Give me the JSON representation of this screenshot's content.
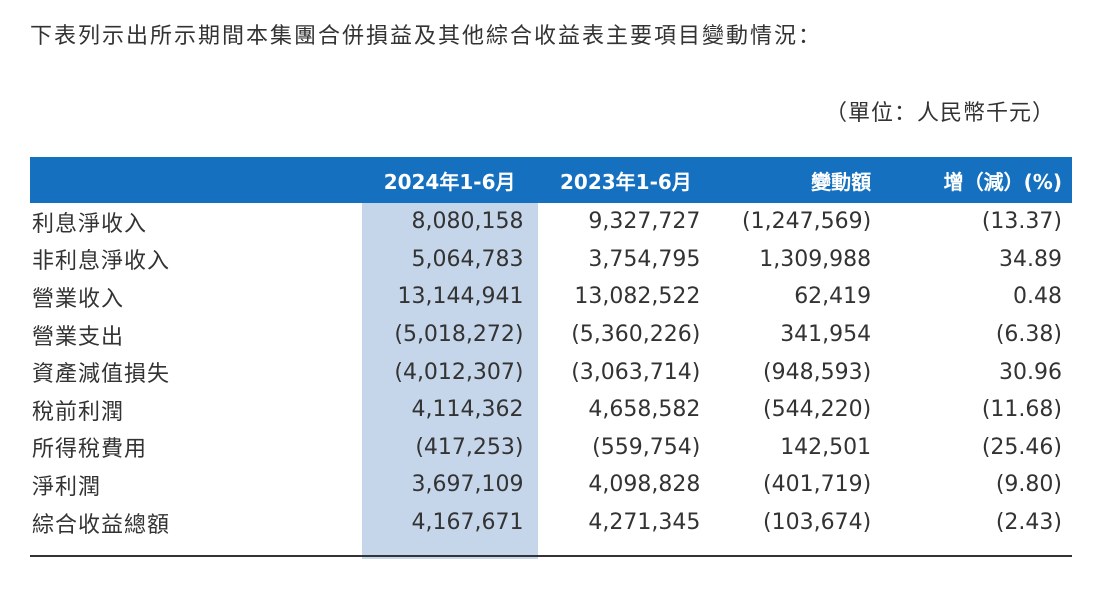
{
  "intro": "下表列示出所示期間本集團合併損益及其他綜合收益表主要項目變動情況：",
  "unit": "（單位：人民幣千元）",
  "table": {
    "headers": [
      "",
      "2024年1-6月",
      "2023年1-6月",
      "變動額",
      "增（減）(%)"
    ],
    "rows": [
      [
        "利息淨收入",
        "8,080,158",
        "9,327,727",
        "(1,247,569)",
        "(13.37)"
      ],
      [
        "非利息淨收入",
        "5,064,783",
        "3,754,795",
        "1,309,988",
        "34.89"
      ],
      [
        "營業收入",
        "13,144,941",
        "13,082,522",
        "62,419",
        "0.48"
      ],
      [
        "營業支出",
        "(5,018,272)",
        "(5,360,226)",
        "341,954",
        "(6.38)"
      ],
      [
        "資產減值損失",
        "(4,012,307)",
        "(3,063,714)",
        "(948,593)",
        "30.96"
      ],
      [
        "稅前利潤",
        "4,114,362",
        "4,658,582",
        "(544,220)",
        "(11.68)"
      ],
      [
        "所得稅費用",
        "(417,253)",
        "(559,754)",
        "142,501",
        "(25.46)"
      ],
      [
        "淨利潤",
        "3,697,109",
        "4,098,828",
        "(401,719)",
        "(9.80)"
      ],
      [
        "綜合收益總額",
        "4,167,671",
        "4,271,345",
        "(103,674)",
        "(2.43)"
      ]
    ]
  },
  "colors": {
    "header_bg": "#1571bf",
    "highlight_col": "#c5d5ea",
    "text": "#333333"
  }
}
